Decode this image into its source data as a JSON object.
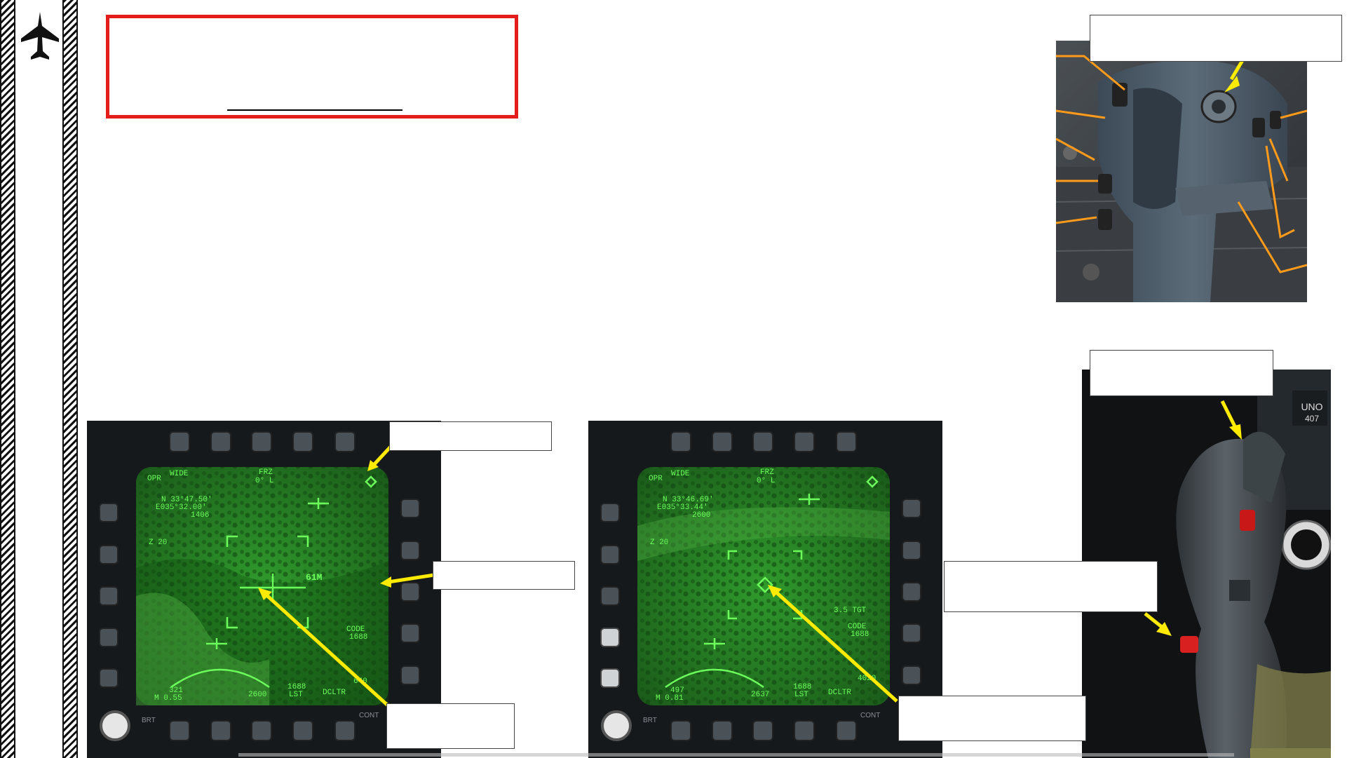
{
  "colors": {
    "accent_red": "#e41c1c",
    "arrow_yellow": "#ffeb00",
    "arrow_orange": "#ff9a1a",
    "flir_green": "#2faa2a",
    "flir_text": "#5cff5c",
    "bezel": "#15191c"
  },
  "icons": {
    "jet": "fighter-jet-silhouette-icon"
  },
  "ddi_left": {
    "top_left": "OPR",
    "mode": "WIDE",
    "frz": "FRZ",
    "frz_sub": "0° L",
    "lat": "N 33°47.50'",
    "lon": "E035°32.00'",
    "elev": "1406",
    "zoom": "Z 20",
    "range_label": "61M",
    "code_label": "CODE",
    "code_value": "1688",
    "mach": "M 0.55",
    "speed": "321",
    "alt_bottom": "2600",
    "laser_code": "1688",
    "lst": "LST",
    "dcltr": "DCLTR",
    "alt_right": "640",
    "brt": "BRT",
    "cont": "CONT"
  },
  "ddi_right": {
    "top_left": "OPR",
    "mode": "WIDE",
    "frz": "FRZ",
    "frz_sub": "0° L",
    "lat": "N 33°46.69'",
    "lon": "E035°33.44'",
    "elev": "2600",
    "zoom": "Z 20",
    "tgt": "3.5 TGT",
    "code_label": "CODE",
    "code_value": "1688",
    "mach": "M 0.81",
    "speed": "497",
    "alt_bottom": "2637",
    "laser_code": "1688",
    "lst": "LST",
    "dcltr": "DCLTR",
    "alt_right": "4020",
    "brt": "BRT",
    "cont": "CONT"
  },
  "throttle_photo": {
    "label_top": "UNO",
    "label_bottom": "407"
  }
}
